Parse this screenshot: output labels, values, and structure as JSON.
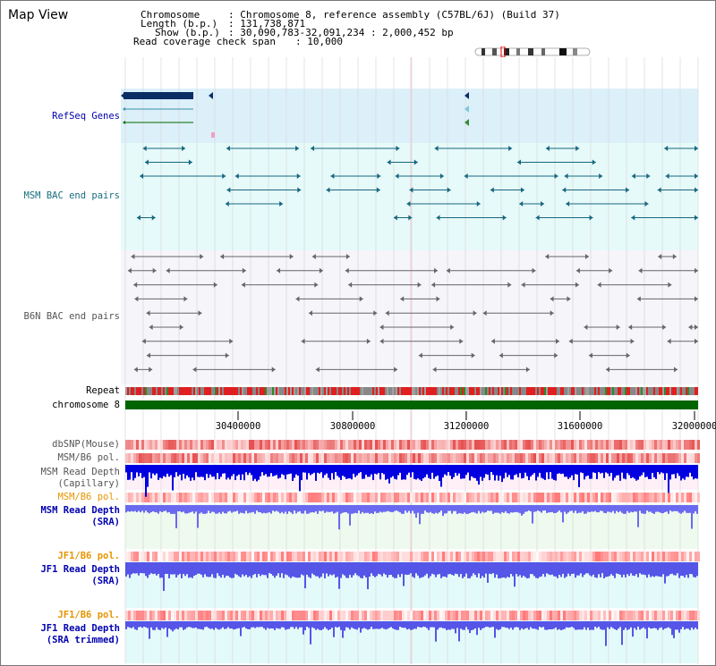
{
  "title": "Map View",
  "header": {
    "chrom_key": "Chromosome",
    "chrom_val": ": Chromosome 8, reference assembly (C57BL/6J) (Build 37)",
    "length_key": "Length (b.p.)",
    "length_val": ": 131,738,871",
    "show_key": "Show (b.p.)",
    "show_val": ": 30,090,783-32,091,234 : 2,000,452 bp",
    "coverage_key": "Read coverage check span",
    "coverage_val": ": 10,000"
  },
  "tracks": {
    "refseq": "RefSeq Genes",
    "msm_bac": "MSM BAC end pairs",
    "b6n_bac": "B6N BAC end pairs",
    "repeat": "Repeat",
    "chrom8": "chromosome 8",
    "dbsnp": "dbSNP(Mouse)",
    "msm_b6_pol": "MSM/B6 pol.",
    "msm_rd_cap_1": "MSM Read Depth",
    "msm_rd_cap_2": "(Capillary)",
    "msm_b6_pol2": "MSM/B6 pol.",
    "msm_rd_sra_1": "MSM Read Depth",
    "msm_rd_sra_2": "(SRA)",
    "jf1_b6_pol": "JF1/B6 pol.",
    "jf1_rd_1": "JF1 Read Depth",
    "jf1_rd_2": "(SRA)",
    "jf1_b6_pol2": "JF1/B6 pol.",
    "jf1_rdt_1": "JF1 Read Depth",
    "jf1_rdt_2": "(SRA trimmed)"
  },
  "axis": {
    "ticks": [
      "30400000",
      "30800000",
      "31200000",
      "31600000",
      "32000000"
    ]
  },
  "colors": {
    "refseq_bg": "#dcf0fa",
    "msm_bac_bg": "#e6fafa",
    "b6n_bac_bg": "#f5f5fa",
    "teal": "#16677f",
    "navy": "#0a2d63",
    "green": "#006400",
    "blue": "#0000e0",
    "label_blue": "#0000b0",
    "label_orange": "#e69500",
    "label_teal": "#166e80"
  }
}
